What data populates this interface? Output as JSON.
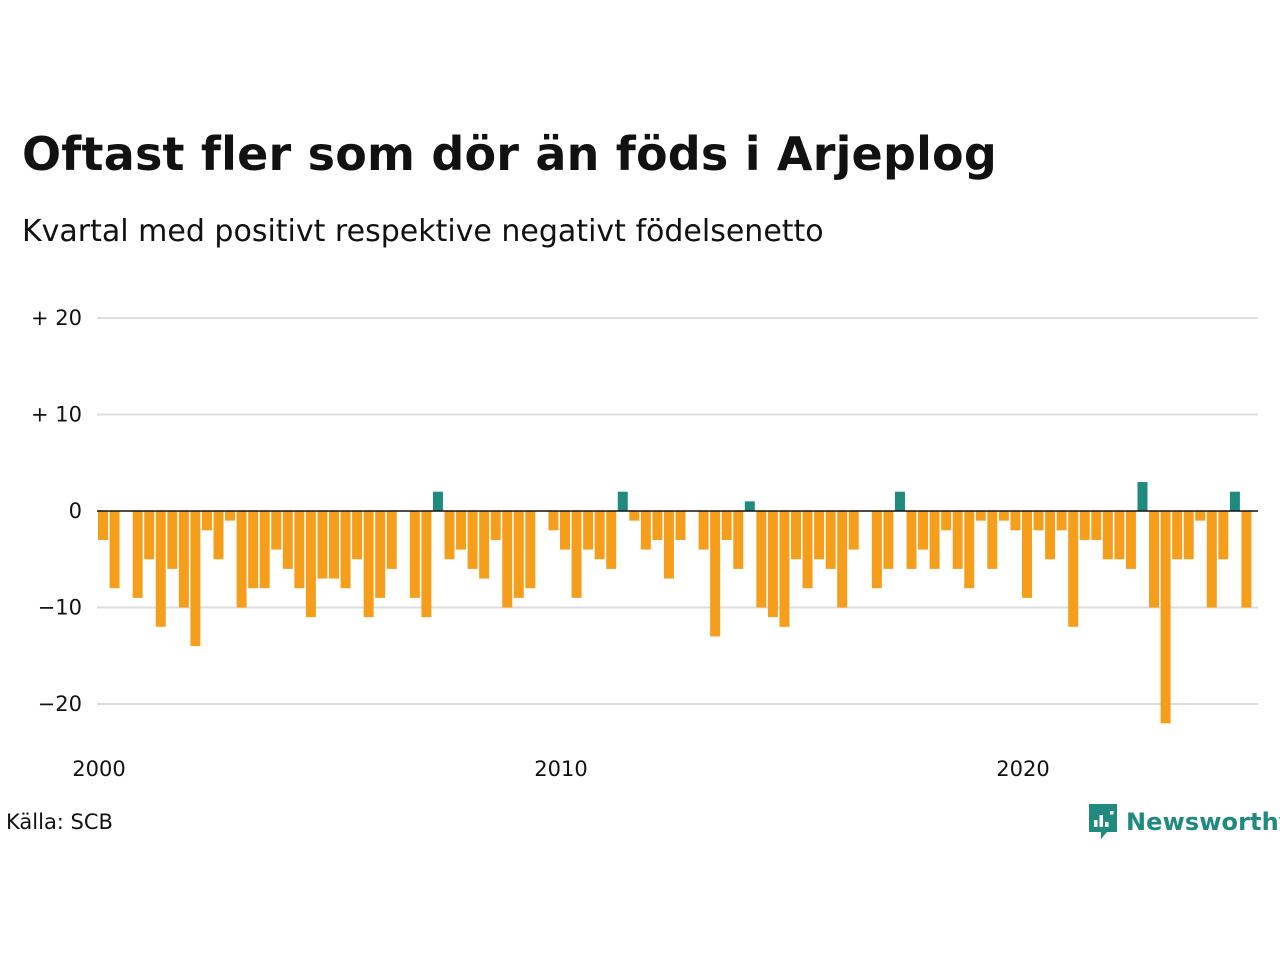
{
  "title": "Oftast fler som dör än föds i Arjeplog",
  "subtitle": "Kvartal med positivt respektive negativt födelsenetto",
  "source": "Källa: SCB",
  "logo_text": "Newsworthy",
  "colors": {
    "negative": "#f59e1b",
    "positive": "#1f8a7d",
    "grid": "#dddddd",
    "zero": "#111111"
  },
  "chart_data": {
    "type": "bar",
    "x_start_year": 2000,
    "periods_per_year": 4,
    "ylim": [
      -24,
      20
    ],
    "yticks": [
      20,
      10,
      0,
      -10,
      -20
    ],
    "ytick_labels": [
      "+ 20",
      "+ 10",
      "0",
      "−10",
      "−20"
    ],
    "xticks": [
      2000,
      2010,
      2020
    ],
    "xtick_labels": [
      "2000",
      "2010",
      "2020"
    ],
    "values": [
      -3,
      -8,
      0,
      -9,
      -5,
      -12,
      -6,
      -10,
      -14,
      -2,
      -5,
      -1,
      -10,
      -8,
      -8,
      -4,
      -6,
      -8,
      -11,
      -7,
      -7,
      -8,
      -5,
      -11,
      -9,
      -6,
      0,
      -9,
      -11,
      2,
      -5,
      -4,
      -6,
      -7,
      -3,
      -10,
      -9,
      -8,
      0,
      -2,
      -4,
      -9,
      -4,
      -5,
      -6,
      2,
      -1,
      -4,
      -3,
      -7,
      -3,
      0,
      -4,
      -13,
      -3,
      -6,
      1,
      -10,
      -11,
      -12,
      -5,
      -8,
      -5,
      -6,
      -10,
      -4,
      0,
      -8,
      -6,
      2,
      -6,
      -4,
      -6,
      -2,
      -6,
      -8,
      -1,
      -6,
      -1,
      -2,
      -9,
      -2,
      -5,
      -2,
      -12,
      -3,
      -3,
      -5,
      -5,
      -6,
      3,
      -10,
      -22,
      -5,
      -5,
      -1,
      -10,
      -5,
      2,
      -10
    ]
  }
}
